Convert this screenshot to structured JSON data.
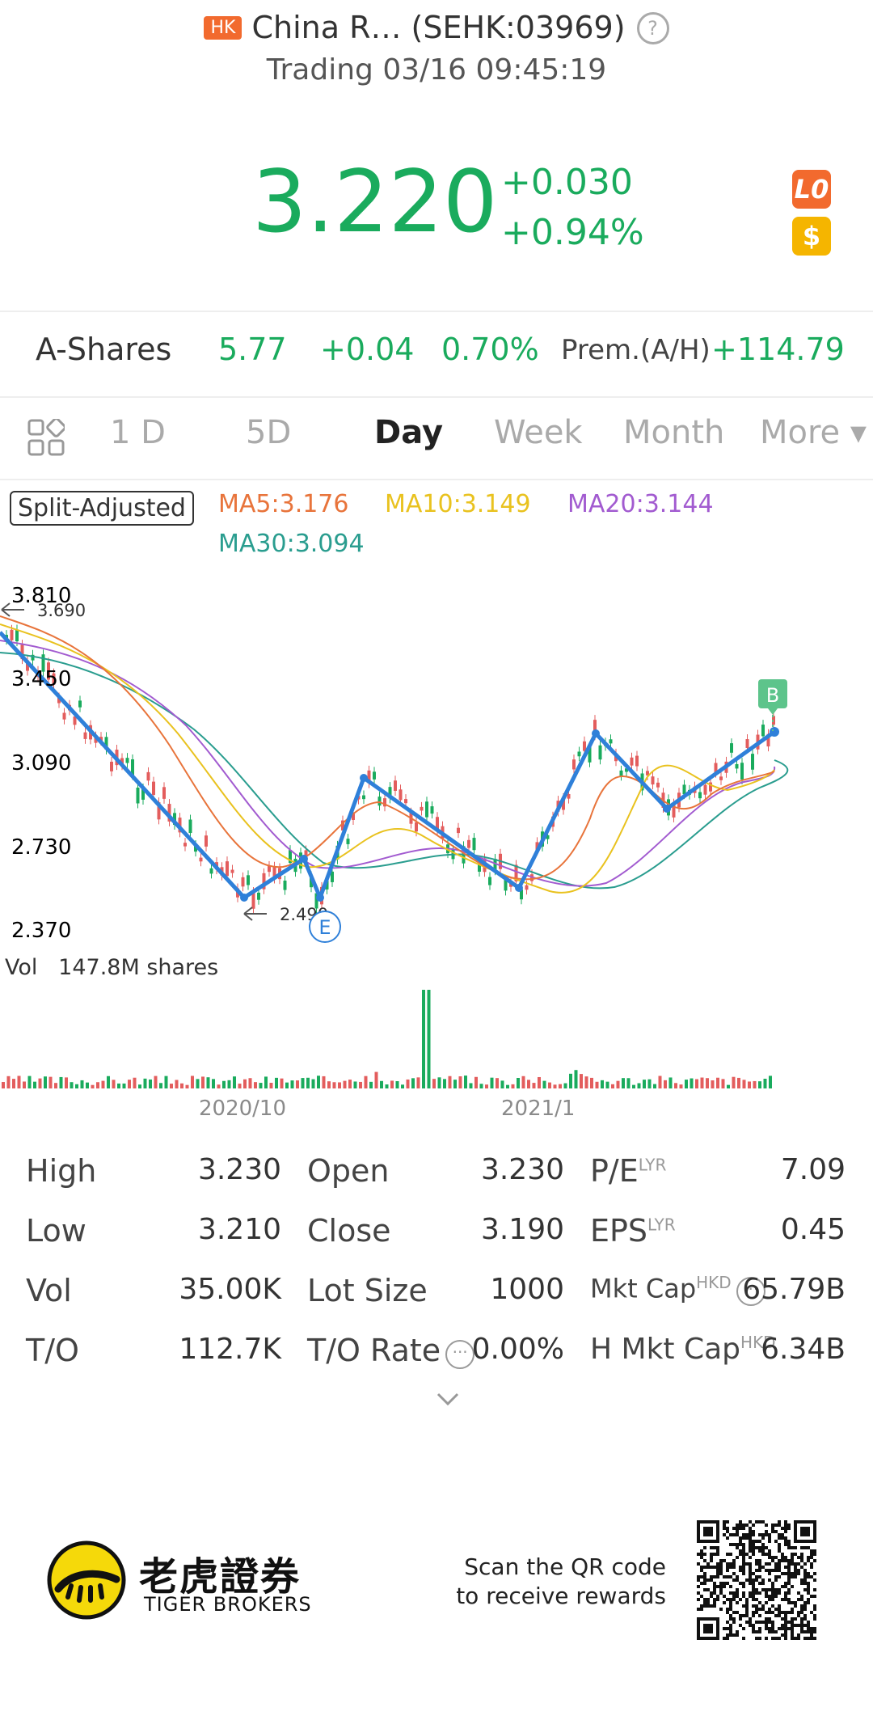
{
  "header": {
    "market_badge": "HK",
    "title": "China R… (SEHK:03969)",
    "status": "Trading 03/16 09:45:19"
  },
  "quote": {
    "price": "3.220",
    "change": "+0.030",
    "change_pct": "+0.94%",
    "icon_l0": "L0",
    "icon_dollar": "$",
    "accent_color": "#1aab5d"
  },
  "ashares": {
    "label": "A-Shares",
    "price": "5.77",
    "change": "+0.04",
    "pct": "0.70%",
    "prem_label": "Prem.(A/H)",
    "prem_value": "+114.79"
  },
  "tabs": {
    "items": [
      "1 D",
      "5D",
      "Day",
      "Week",
      "Month",
      "More ▾"
    ],
    "active": "Day"
  },
  "indicators": {
    "split": "Split-Adjusted",
    "ma5": "MA5:3.176",
    "ma10": "MA10:3.149",
    "ma20": "MA20:3.144",
    "ma30": "MA30:3.094"
  },
  "chart": {
    "y_ticks": [
      "3.810",
      "3.450",
      "3.090",
      "2.730",
      "2.370"
    ],
    "high_marker": "3.690",
    "low_marker": "2.490",
    "marker_e": "E",
    "marker_b": "B",
    "vol_label": "Vol",
    "vol_value": "147.8M shares",
    "x_ticks": [
      "2020/10",
      "2021/1"
    ]
  },
  "stats": [
    {
      "label": "High",
      "value": "3.230",
      "label2": "Open",
      "value2": "3.230",
      "label3": "P/E",
      "sup3": "LYR",
      "value3": "7.09"
    },
    {
      "label": "Low",
      "value": "3.210",
      "label2": "Close",
      "value2": "3.190",
      "label3": "EPS",
      "sup3": "LYR",
      "value3": "0.45"
    },
    {
      "label": "Vol",
      "value": "35.00K",
      "label2": "Lot Size",
      "value2": "1000",
      "label3": "Mkt Cap",
      "sup3": "HKD",
      "value3": "65.79B"
    },
    {
      "label": "T/O",
      "value": "112.7K",
      "label2": "T/O Rate",
      "value2": "0.00%",
      "label3": "H Mkt Cap",
      "sup3": "HKD",
      "value3": "6.34B"
    }
  ],
  "footer": {
    "brand_cn": "老虎證券",
    "brand_en": "TIGER BROKERS",
    "scan_line1": "Scan the QR code",
    "scan_line2": "to receive rewards"
  }
}
